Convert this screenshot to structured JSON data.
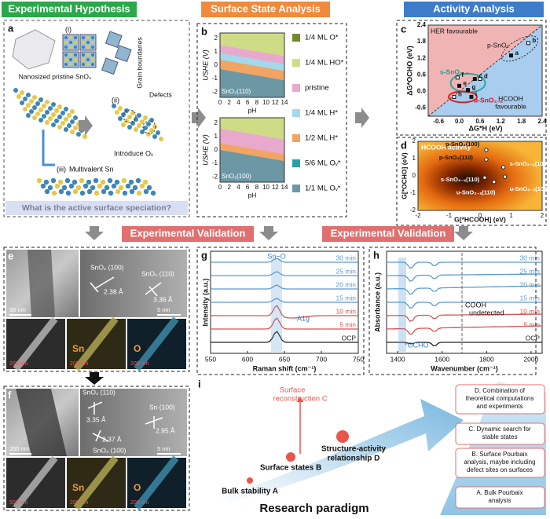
{
  "headers": {
    "hypothesis": "Experimental Hypothesis",
    "surface": "Surface State Analysis",
    "activity": "Activity Analysis",
    "validation": [
      "Experimental Validation",
      "Experimental Validation"
    ]
  },
  "panel_a": {
    "label": "a",
    "i": "(i)",
    "pristine": "Nanosized pristine SnO₂",
    "grain": "Grain boundaries",
    "ii": "(ii)",
    "defects": "Defects",
    "introduce": "Introduce Oᵥ",
    "iii": "(iii)",
    "multivalent": "Multivalent Sn",
    "question": "What is the active surface speciation?"
  },
  "panel_b": {
    "label": "b",
    "ylabel": "USHE (V)",
    "xlabel": "pH",
    "xticks": [
      0,
      2,
      4,
      6,
      8,
      10,
      12,
      14
    ],
    "yticks": [
      -2,
      -1,
      0,
      1,
      2
    ],
    "plots": [
      "SnO₂(110)",
      "SnO₂(100)"
    ],
    "legend": [
      {
        "name": "1/4 ML O*",
        "color": "#6e8a2a"
      },
      {
        "name": "1/4 ML HO*",
        "color": "#cfdc86"
      },
      {
        "name": "pristine",
        "color": "#e9a9cc"
      },
      {
        "name": "1/4 ML H*",
        "color": "#a3d9ea"
      },
      {
        "name": "1/2 ML H*",
        "color": "#f2a463"
      },
      {
        "name": "5/6 ML Oᵥ*",
        "color": "#2b9fa8"
      },
      {
        "name": "1/1 ML Oᵥ*",
        "color": "#6c98a6"
      }
    ]
  },
  "panel_c": {
    "label": "c",
    "her": "HER favourable",
    "hcooh": [
      "HCOOH",
      "favourable"
    ],
    "ylabel": "ΔG*OCHO (eV)",
    "xlabel": "ΔG*H (eV)",
    "xticks": [
      -0.6,
      {
        "value": 0,
        "label": "0.0"
      },
      0.6,
      1.2,
      1.8,
      2.4
    ],
    "yticks": [
      -0.6,
      {
        "value": 0,
        "label": "0.0"
      },
      0.6,
      1.2,
      1.8,
      2.4
    ],
    "groups": [
      "p-SnO₂",
      "s-SnO₂₋ₓ",
      "u-SnO₂₋ₓ"
    ],
    "points": [
      {
        "label": "a",
        "x": 1.5,
        "y": 1.3
      },
      {
        "label": "b",
        "x": 2.0,
        "y": 1.75
      },
      {
        "label": "c",
        "x": 0.45,
        "y": 0.45
      },
      {
        "label": "d",
        "x": 0.6,
        "y": 0.45
      },
      {
        "label": "e",
        "x": 0.0,
        "y": 0.2
      },
      {
        "label": "f",
        "x": -0.05,
        "y": 0.5
      },
      {
        "label": "g",
        "x": 0.25,
        "y": 0.05
      },
      {
        "label": "h",
        "x": -0.15,
        "y": -0.2
      },
      {
        "label": "i",
        "x": 0.35,
        "y": -0.2
      }
    ]
  },
  "panel_d": {
    "label": "d",
    "title": "HCOOH activity",
    "ylabel": "G[*OCHO] (eV)",
    "xlabel": "G[*HCOOH] (eV)",
    "xticks": [
      -2,
      -1,
      0,
      1,
      2
    ],
    "yticks": [
      -2,
      -1,
      0,
      1,
      2
    ],
    "points": [
      {
        "label": "p-SnO₂(100)",
        "x": 0.2,
        "y": 1.5
      },
      {
        "label": "p-SnO₂(110)",
        "x": 0.2,
        "y": 0.95
      },
      {
        "label": "s-SnO₂₋ₓ(100)",
        "x": 0.75,
        "y": 0.5
      },
      {
        "label": "s-SnO₂₋ₓ(110)",
        "x": 0.15,
        "y": -0.1
      },
      {
        "label": "u-SnO₂₋ₓ(110)",
        "x": 0.45,
        "y": -0.35
      },
      {
        "label": "u-SnO₂₋ₓ(100)",
        "x": 0.8,
        "y": -0.05
      }
    ]
  },
  "panel_e": {
    "label": "e",
    "scale_tem": "50 nm",
    "scale_hr": "5 nm",
    "planes": [
      "SnO₂ (100)",
      "SnO₂ (110)"
    ],
    "d": [
      "2.38 Å",
      "3.36 Å"
    ],
    "scale_maps": [
      "200 nm",
      "200 nm",
      "200 nm"
    ],
    "elements": [
      "Sn",
      "O"
    ]
  },
  "panel_f": {
    "label": "f",
    "planes": [
      "SnO₂ (110)",
      "Sn (100)",
      "SnO₂ (100)"
    ],
    "d": [
      "3.35 Å",
      "2.95 Å",
      "2.37 Å"
    ],
    "scale_tem": "200 nm",
    "scale_hr": "5 nm",
    "scale_maps": [
      "500 nm",
      "200 nm",
      "200 nm"
    ],
    "elements": [
      "Sn",
      "O"
    ]
  },
  "panel_g": {
    "label": "g",
    "peak": "Sn−O",
    "mode": "A1g",
    "ylabel": "Intensity (a.u.)",
    "xlabel": "Raman shift (cm⁻¹)",
    "xticks": [
      550,
      600,
      650,
      700,
      750
    ],
    "times": [
      "30 min",
      "25 min",
      "20 min",
      "15 min",
      "10 min",
      "5 min",
      "OCP"
    ]
  },
  "panel_h": {
    "label": "h",
    "cooh": [
      "COOH",
      "undetected"
    ],
    "ocho": "*OCHO",
    "ylabel": "Absorbance (a.u.)",
    "xlabel": "Wavenumber (cm⁻¹)",
    "xticks": [
      1400,
      1600,
      1800,
      2000
    ],
    "times": [
      "30 min",
      "25 min",
      "20 min",
      "15 min",
      "10 min",
      "5 min",
      "OCP"
    ]
  },
  "panel_i": {
    "label": "i",
    "reconstruction": [
      "Surface",
      "reconstruction C"
    ],
    "structure": [
      "Structure-activity",
      "relationship D"
    ],
    "states": "Surface states B",
    "bulk": "Bulk stability A",
    "paradigm": "Research paradigm",
    "boxes": [
      [
        "D. Combination of",
        "theoretical computations",
        "and experiments"
      ],
      [
        "C. Dynamic search for",
        "stable states"
      ],
      [
        "B. Surface Pourbaix",
        "analysis, maybe including",
        "defect sites on surfaces"
      ],
      [
        "A. Bulk Pourbaix",
        "analysis"
      ]
    ]
  }
}
